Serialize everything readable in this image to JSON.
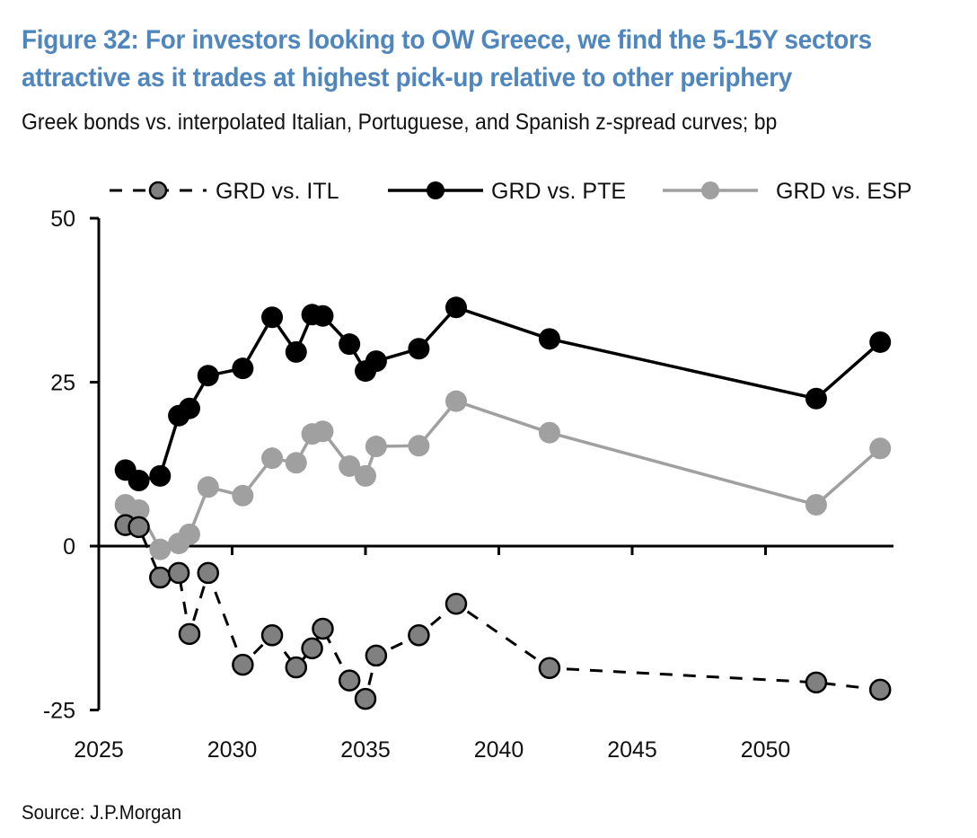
{
  "figure": {
    "title": "Figure 32: For investors looking to OW Greece, we find the 5-15Y sectors attractive as it trades at highest pick-up relative to other periphery",
    "subtitle": "Greek bonds vs. interpolated Italian, Portuguese, and Spanish z-spread curves; bp",
    "source": "Source: J.P.Morgan"
  },
  "colors": {
    "title": "#4f86be",
    "itl_marker": "#808080",
    "pte": "#000000",
    "esp": "#a0a0a0"
  },
  "chart_data": {
    "type": "line",
    "title": "Greek bonds vs. interpolated Italian, Portuguese, and Spanish z-spread curves; bp",
    "xlabel": "",
    "ylabel": "bp",
    "xlim": [
      2025,
      2054.8
    ],
    "ylim": [
      -25,
      50
    ],
    "x_ticks": [
      2025,
      2030,
      2035,
      2040,
      2045,
      2050
    ],
    "x_tick_labels": [
      "2025",
      "2030",
      "2035",
      "2040",
      "2045",
      "2050"
    ],
    "y_ticks": [
      -25,
      0,
      25,
      50
    ],
    "y_tick_labels": [
      "-25",
      "0",
      "25",
      "50"
    ],
    "grid": false,
    "legend_position": "top",
    "x": [
      2026.0,
      2026.5,
      2027.3,
      2028.0,
      2028.4,
      2029.1,
      2030.4,
      2031.5,
      2032.4,
      2033.0,
      2033.4,
      2034.4,
      2035.0,
      2035.4,
      2037.0,
      2038.4,
      2041.9,
      2051.9,
      2054.3
    ],
    "series": [
      {
        "name": "GRD vs. ITL",
        "style": "dashed",
        "values": [
          3.2,
          2.9,
          -4.8,
          -4.1,
          -13.4,
          -4.1,
          -18.1,
          -13.6,
          -18.5,
          -15.6,
          -12.6,
          -20.5,
          -23.3,
          -16.7,
          -13.6,
          -8.8,
          -18.6,
          -20.8,
          -21.9
        ]
      },
      {
        "name": "GRD vs. PTE",
        "style": "solid",
        "values": [
          11.6,
          10.0,
          10.7,
          19.9,
          21.0,
          26.0,
          27.1,
          34.9,
          29.6,
          35.3,
          35.1,
          30.8,
          26.7,
          28.2,
          30.1,
          36.4,
          31.6,
          22.5,
          31.1
        ]
      },
      {
        "name": "GRD vs. ESP",
        "style": "solid",
        "values": [
          6.3,
          5.5,
          -0.5,
          0.4,
          1.8,
          9.0,
          7.7,
          13.4,
          12.7,
          17.1,
          17.5,
          12.2,
          10.7,
          15.2,
          15.3,
          22.1,
          17.3,
          6.3,
          14.9
        ]
      }
    ]
  }
}
